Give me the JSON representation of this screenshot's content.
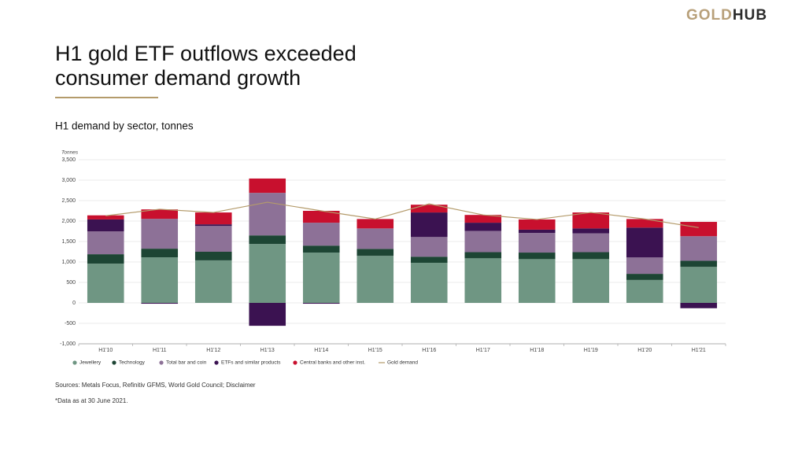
{
  "logo": {
    "gold": "GOLD",
    "hub": "HUB"
  },
  "chart_data": {
    "type": "stacked-bar-line",
    "title": [
      "H1 gold ETF outflows exceeded",
      "consumer demand growth"
    ],
    "subtitle": "H1 demand by sector, tonnes",
    "y_label": "Tonnes",
    "categories": [
      "H1'10",
      "H1'11",
      "H1'12",
      "H1'13",
      "H1'14",
      "H1'15",
      "H1'16",
      "H1'17",
      "H1'18",
      "H1'19",
      "H1'20",
      "H1'21"
    ],
    "series": [
      {
        "name": "Jewellery",
        "color": "#6f9683",
        "values": [
          960,
          1115,
          1040,
          1440,
          1230,
          1150,
          980,
          1090,
          1070,
          1070,
          560,
          880
        ]
      },
      {
        "name": "Technology",
        "color": "#1d4534",
        "values": [
          230,
          210,
          210,
          210,
          170,
          170,
          150,
          150,
          160,
          170,
          150,
          150
        ]
      },
      {
        "name": "Total bar and coin",
        "color": "#8d7197",
        "values": [
          560,
          730,
          630,
          1040,
          560,
          500,
          480,
          520,
          480,
          460,
          400,
          600
        ]
      },
      {
        "name": "ETFs and similar products",
        "color": "#3b1251",
        "values": [
          290,
          -20,
          40,
          -560,
          -20,
          0,
          600,
          200,
          80,
          120,
          730,
          -130
        ]
      },
      {
        "name": "Central banks and other inst.",
        "color": "#c8102e",
        "values": [
          100,
          230,
          290,
          350,
          290,
          230,
          190,
          190,
          250,
          390,
          210,
          350
        ]
      }
    ],
    "line_series": {
      "name": "Gold demand",
      "color": "#b49b6b",
      "values": [
        2130,
        2290,
        2210,
        2460,
        2250,
        2050,
        2420,
        2150,
        2040,
        2210,
        2050,
        1840
      ]
    },
    "ylim": [
      -1000,
      3500
    ],
    "yticks": [
      {
        "value": -1000,
        "label": "-1,000"
      },
      -500,
      0,
      500,
      {
        "value": 1000,
        "label": "1,000"
      },
      {
        "value": 1500,
        "label": "1,500"
      },
      {
        "value": 2000,
        "label": "2,000"
      },
      {
        "value": 2500,
        "label": "2,500"
      },
      {
        "value": 3000,
        "label": "3,000"
      },
      {
        "value": 3500,
        "label": "3,500"
      }
    ],
    "grid": true
  },
  "sources": "Sources: Metals Focus, Refinitiv GFMS, World Gold Council; Disclaimer",
  "note": "*Data as at 30 June 2021."
}
